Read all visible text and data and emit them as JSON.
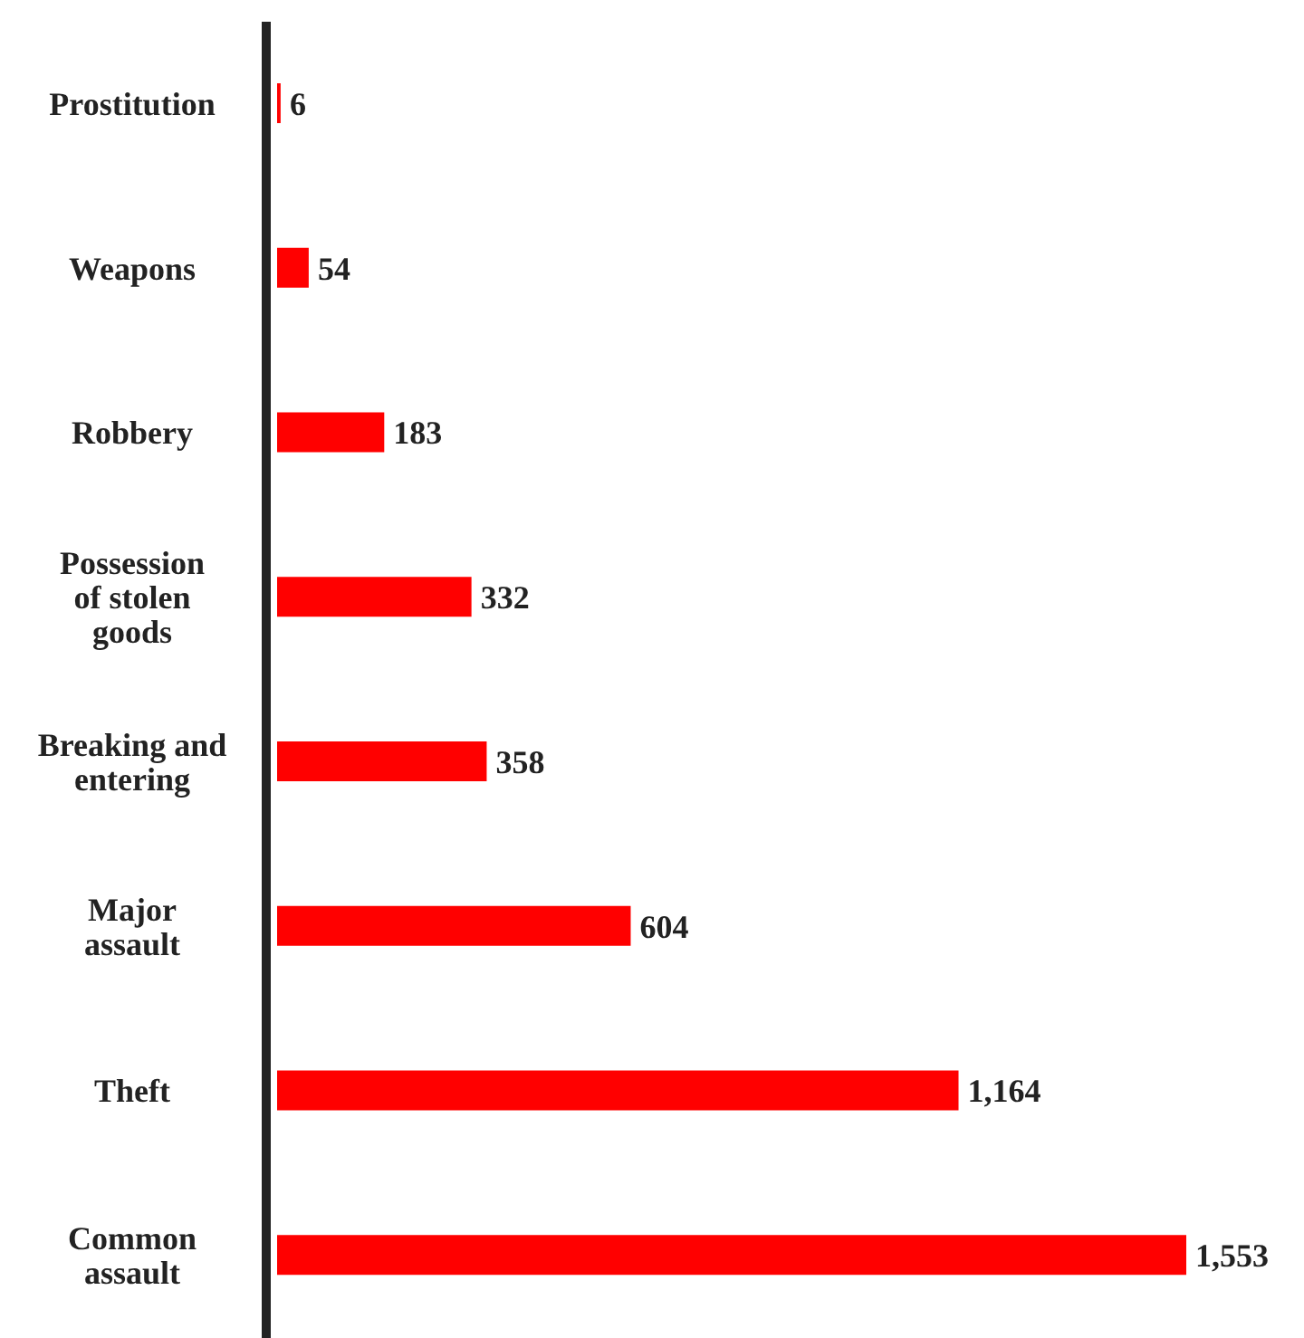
{
  "chart_data": {
    "type": "bar",
    "orientation": "horizontal",
    "categories": [
      "Prostitution",
      "Weapons",
      "Robbery",
      "Possession of stolen goods",
      "Breaking and entering",
      "Major assault",
      "Theft",
      "Common assault"
    ],
    "values": [
      6,
      54,
      183,
      332,
      358,
      604,
      1164,
      1553
    ],
    "color": "#ff0000",
    "value_labels": [
      "6",
      "54",
      "183",
      "332",
      "358",
      "604",
      "1,164",
      "1,553"
    ],
    "grid": false,
    "legend": false,
    "tick_labels": "y"
  }
}
